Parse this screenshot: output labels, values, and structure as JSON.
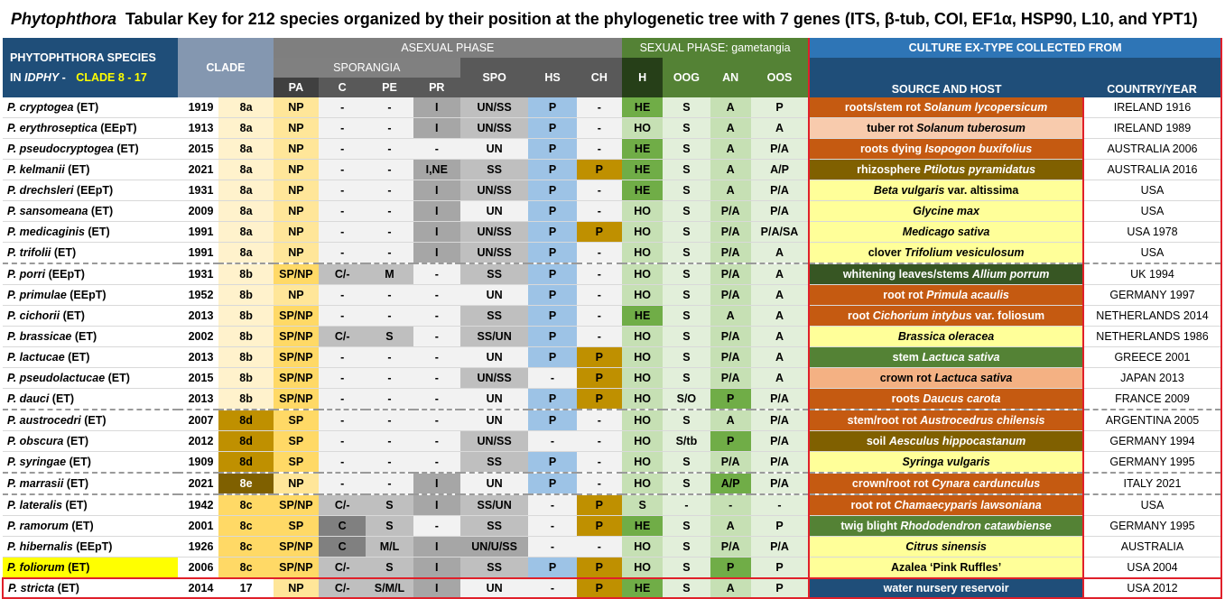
{
  "title": {
    "genus": "Phytophthora",
    "rest": "Tabular Key for 212 species organized by their position at the phylogenetic tree with 7 genes (ITS, β-tub, COI, EF1α, HSP90, L10, and YPT1)"
  },
  "headers": {
    "species_line1": "PHYTOPHTHORA  SPECIES",
    "species_line2a": "IN ",
    "species_line2b": "IDPHY",
    "species_line2c": " - ",
    "species_line2d": "CLADE 8 - 17",
    "clade": "CLADE",
    "asexual": "ASEXUAL PHASE",
    "sporangia": "SPORANGIA",
    "sexual": "SEXUAL PHASE: gametangia",
    "culture": "CULTURE EX-TYPE COLLECTED FROM",
    "pa": "PA",
    "c": "C",
    "pe": "PE",
    "pr": "PR",
    "spo": "SPO",
    "hs": "HS",
    "ch": "CH",
    "h": "H",
    "oog": "OOG",
    "an": "AN",
    "oos": "OOS",
    "source": "SOURCE AND HOST",
    "country": "COUNTRY/YEAR"
  },
  "colors": {
    "clade_light": "#fff2cc",
    "clade_dark": "#bf9000",
    "clade_e": "#7f6000",
    "pa_np": "#ffe699",
    "pa_sp": "#ffd966",
    "grey_light": "#f2f2f2",
    "grey_mid": "#bfbfbf",
    "grey_dark": "#a6a6a6",
    "grey_darker": "#808080",
    "hs_p": "#9dc3e6",
    "ch_p": "#bf9000",
    "h_he": "#70ad47",
    "sex_light": "#e2efda",
    "sex_mid": "#c6e0b4",
    "an_p": "#70ad47",
    "src_orange": "#c55a11",
    "src_lightorange": "#f8cbad",
    "src_salmon": "#f4b183",
    "src_olive": "#806000",
    "src_yellow": "#ffff99",
    "src_darkgreen": "#375623",
    "src_green": "#548235",
    "src_navy": "#1f4e79",
    "highlight": "#ffff00"
  },
  "rows": [
    {
      "name": "P. cryptogea",
      "tag": "(ET)",
      "year": "1919",
      "clade": "8a",
      "pa": "NP",
      "c": "-",
      "pe": "-",
      "pr": "I",
      "spo": "UN/SS",
      "hs": "P",
      "ch": "-",
      "h": "HE",
      "oog": "S",
      "an": "A",
      "oos": "P",
      "source_pre": "roots/stem rot ",
      "source_host": "Solanum lycopersicum",
      "source_post": "",
      "src_color": "orange",
      "country": "IRELAND 1916"
    },
    {
      "name": "P. erythroseptica",
      "tag": "(EEpT)",
      "year": "1913",
      "clade": "8a",
      "pa": "NP",
      "c": "-",
      "pe": "-",
      "pr": "I",
      "spo": "UN/SS",
      "hs": "P",
      "ch": "-",
      "h": "HO",
      "oog": "S",
      "an": "A",
      "oos": "A",
      "source_pre": "tuber rot ",
      "source_host": "Solanum tuberosum",
      "source_post": "",
      "src_color": "lightorange",
      "country": "IRELAND 1989"
    },
    {
      "name": "P. pseudocryptogea",
      "tag": "(ET)",
      "year": "2015",
      "clade": "8a",
      "pa": "NP",
      "c": "-",
      "pe": "-",
      "pr": "-",
      "spo": "UN",
      "hs": "P",
      "ch": "-",
      "h": "HE",
      "oog": "S",
      "an": "A",
      "oos": "P/A",
      "source_pre": "roots dying ",
      "source_host": "Isopogon buxifolius",
      "source_post": "",
      "src_color": "orange",
      "country": "AUSTRALIA 2006"
    },
    {
      "name": "P. kelmanii",
      "tag": "(ET)",
      "year": "2021",
      "clade": "8a",
      "pa": "NP",
      "c": "-",
      "pe": "-",
      "pr": "I,NE",
      "spo": "SS",
      "hs": "P",
      "ch": "P",
      "h": "HE",
      "oog": "S",
      "an": "A",
      "oos": "A/P",
      "source_pre": "rhizosphere ",
      "source_host": "Ptilotus pyramidatus",
      "source_post": "",
      "src_color": "olive",
      "country": "AUSTRALIA 2016"
    },
    {
      "name": "P. drechsleri",
      "tag": "(EEpT)",
      "year": "1931",
      "clade": "8a",
      "pa": "NP",
      "c": "-",
      "pe": "-",
      "pr": "I",
      "spo": "UN/SS",
      "hs": "P",
      "ch": "-",
      "h": "HE",
      "oog": "S",
      "an": "A",
      "oos": "P/A",
      "source_pre": "",
      "source_host": "Beta vulgaris",
      "source_post": "  var. altissima",
      "src_color": "yellow",
      "country": "USA"
    },
    {
      "name": "P. sansomeana",
      "tag": "(ET)",
      "year": "2009",
      "clade": "8a",
      "pa": "NP",
      "c": "-",
      "pe": "-",
      "pr": "I",
      "spo": "UN",
      "hs": "P",
      "ch": "-",
      "h": "HO",
      "oog": "S",
      "an": "P/A",
      "oos": "P/A",
      "source_pre": "",
      "source_host": "Glycine max",
      "source_post": "",
      "src_color": "yellow",
      "country": "USA"
    },
    {
      "name": "P. medicaginis",
      "tag": "(ET)",
      "year": "1991",
      "clade": "8a",
      "pa": "NP",
      "c": "-",
      "pe": "-",
      "pr": "I",
      "spo": "UN/SS",
      "hs": "P",
      "ch": "P",
      "h": "HO",
      "oog": "S",
      "an": "P/A",
      "oos": "P/A/SA",
      "source_pre": "",
      "source_host": "Medicago sativa",
      "source_post": "",
      "src_color": "yellow",
      "country": "USA 1978"
    },
    {
      "name": "P. trifolii",
      "tag": "(ET)",
      "year": "1991",
      "clade": "8a",
      "pa": "NP",
      "c": "-",
      "pe": "-",
      "pr": "I",
      "spo": "UN/SS",
      "hs": "P",
      "ch": "-",
      "h": "HO",
      "oog": "S",
      "an": "P/A",
      "oos": "A",
      "source_pre": "clover ",
      "source_host": "Trifolium vesiculosum",
      "source_post": "",
      "src_color": "yellow",
      "country": "USA",
      "sep": true
    },
    {
      "name": "P. porri",
      "tag": "(EEpT)",
      "year": "1931",
      "clade": "8b",
      "pa": "SP/NP",
      "c": "C/-",
      "pe": "M",
      "pr": "-",
      "spo": "SS",
      "hs": "P",
      "ch": "-",
      "h": "HO",
      "oog": "S",
      "an": "P/A",
      "oos": "A",
      "source_pre": "whitening leaves/stems ",
      "source_host": "Allium porrum",
      "source_post": "",
      "src_color": "darkgreen",
      "country": "UK 1994"
    },
    {
      "name": "P. primulae",
      "tag": "(EEpT)",
      "year": "1952",
      "clade": "8b",
      "pa": "NP",
      "c": "-",
      "pe": "-",
      "pr": "-",
      "spo": "UN",
      "hs": "P",
      "ch": "-",
      "h": "HO",
      "oog": "S",
      "an": "P/A",
      "oos": "A",
      "source_pre": "root rot ",
      "source_host": "Primula acaulis",
      "source_post": "",
      "src_color": "orange",
      "country": "GERMANY 1997"
    },
    {
      "name": "P. cichorii",
      "tag": "(ET)",
      "year": "2013",
      "clade": "8b",
      "pa": "SP/NP",
      "c": "-",
      "pe": "-",
      "pr": "-",
      "spo": "SS",
      "hs": "P",
      "ch": "-",
      "h": "HE",
      "oog": "S",
      "an": "A",
      "oos": "A",
      "source_pre": "root ",
      "source_host": "Cichorium intybus",
      "source_post": " var. foliosum",
      "src_color": "orange",
      "country": "NETHERLANDS 2014"
    },
    {
      "name": "P. brassicae",
      "tag": "(ET)",
      "year": "2002",
      "clade": "8b",
      "pa": "SP/NP",
      "c": "C/-",
      "pe": "S",
      "pr": "-",
      "spo": "SS/UN",
      "hs": "P",
      "ch": "-",
      "h": "HO",
      "oog": "S",
      "an": "P/A",
      "oos": "A",
      "source_pre": "",
      "source_host": "Brassica oleracea",
      "source_post": "",
      "src_color": "yellow",
      "country": "NETHERLANDS 1986"
    },
    {
      "name": "P. lactucae",
      "tag": "(ET)",
      "year": "2013",
      "clade": "8b",
      "pa": "SP/NP",
      "c": "-",
      "pe": "-",
      "pr": "-",
      "spo": "UN",
      "hs": "P",
      "ch": "P",
      "h": "HO",
      "oog": "S",
      "an": "P/A",
      "oos": "A",
      "source_pre": "stem ",
      "source_host": "Lactuca sativa",
      "source_post": "",
      "src_color": "green",
      "country": "GREECE 2001"
    },
    {
      "name": "P. pseudolactucae",
      "tag": "(ET)",
      "year": "2015",
      "clade": "8b",
      "pa": "SP/NP",
      "c": "-",
      "pe": "-",
      "pr": "-",
      "spo": "UN/SS",
      "hs": "-",
      "ch": "P",
      "h": "HO",
      "oog": "S",
      "an": "P/A",
      "oos": "A",
      "source_pre": "crown rot ",
      "source_host": "Lactuca sativa",
      "source_post": "",
      "src_color": "salmon",
      "country": "JAPAN 2013"
    },
    {
      "name": "P. dauci",
      "tag": "(ET)",
      "year": "2013",
      "clade": "8b",
      "pa": "SP/NP",
      "c": "-",
      "pe": "-",
      "pr": "-",
      "spo": "UN",
      "hs": "P",
      "ch": "P",
      "h": "HO",
      "oog": "S/O",
      "an": "P",
      "oos": "P/A",
      "source_pre": "roots ",
      "source_host": "Daucus carota",
      "source_post": "",
      "src_color": "orange",
      "country": "FRANCE 2009",
      "sep": true
    },
    {
      "name": "P. austrocedri",
      "tag": "(ET)",
      "year": "2007",
      "clade": "8d",
      "pa": "SP",
      "c": "-",
      "pe": "-",
      "pr": "-",
      "spo": "UN",
      "hs": "P",
      "ch": "-",
      "h": "HO",
      "oog": "S",
      "an": "A",
      "oos": "P/A",
      "source_pre": "stem/root rot ",
      "source_host": "Austrocedrus chilensis",
      "source_post": "",
      "src_color": "orange",
      "country": "ARGENTINA 2005"
    },
    {
      "name": "P. obscura",
      "tag": "(ET)",
      "year": "2012",
      "clade": "8d",
      "pa": "SP",
      "c": "-",
      "pe": "-",
      "pr": "-",
      "spo": "UN/SS",
      "hs": "-",
      "ch": "-",
      "h": "HO",
      "oog": "S/tb",
      "an": "P",
      "oos": "P/A",
      "source_pre": "soil ",
      "source_host": "Aesculus hippocastanum",
      "source_post": "",
      "src_color": "olive",
      "country": "GERMANY 1994"
    },
    {
      "name": "P. syringae",
      "tag": "(ET)",
      "year": "1909",
      "clade": "8d",
      "pa": "SP",
      "c": "-",
      "pe": "-",
      "pr": "-",
      "spo": "SS",
      "hs": "P",
      "ch": "-",
      "h": "HO",
      "oog": "S",
      "an": "P/A",
      "oos": "P/A",
      "source_pre": "",
      "source_host": "Syringa vulgaris",
      "source_post": "",
      "src_color": "yellow",
      "country": "GERMANY 1995",
      "sep": true
    },
    {
      "name": "P. marrasii",
      "tag": "(ET)",
      "year": "2021",
      "clade": "8e",
      "pa": "NP",
      "c": "-",
      "pe": "-",
      "pr": "I",
      "spo": "UN",
      "hs": "P",
      "ch": "-",
      "h": "HO",
      "oog": "S",
      "an": "A/P",
      "oos": "P/A",
      "source_pre": "crown/root rot ",
      "source_host": "Cynara cardunculus",
      "source_post": "",
      "src_color": "orange",
      "country": "ITALY 2021",
      "sep": true
    },
    {
      "name": "P. lateralis",
      "tag": "(ET)",
      "year": "1942",
      "clade": "8c",
      "pa": "SP/NP",
      "c": "C/-",
      "pe": "S",
      "pr": "I",
      "spo": "SS/UN",
      "hs": "-",
      "ch": "P",
      "h": "S",
      "oog": "-",
      "an": "-",
      "oos": "-",
      "source_pre": "root rot ",
      "source_host": "Chamaecyparis lawsoniana",
      "source_post": "",
      "src_color": "orange",
      "country": "USA"
    },
    {
      "name": "P. ramorum",
      "tag": "(ET)",
      "year": "2001",
      "clade": "8c",
      "pa": "SP",
      "c": "C",
      "pe": "S",
      "pr": "-",
      "spo": "SS",
      "hs": "-",
      "ch": "P",
      "h": "HE",
      "oog": "S",
      "an": "A",
      "oos": "P",
      "source_pre": "twig blight ",
      "source_host": "Rhododendron catawbiense",
      "source_post": "",
      "src_color": "green",
      "country": "GERMANY 1995"
    },
    {
      "name": "P. hibernalis",
      "tag": "(EEpT)",
      "year": "1926",
      "clade": "8c",
      "pa": "SP/NP",
      "c": "C",
      "pe": "M/L",
      "pr": "I",
      "spo": "UN/U/SS",
      "hs": "-",
      "ch": "-",
      "h": "HO",
      "oog": "S",
      "an": "P/A",
      "oos": "P/A",
      "source_pre": "",
      "source_host": "Citrus sinensis",
      "source_post": "",
      "src_color": "yellow",
      "country": "AUSTRALIA"
    },
    {
      "name": "P. foliorum",
      "tag": "(ET)",
      "year": "2006",
      "clade": "8c",
      "pa": "SP/NP",
      "c": "C/-",
      "pe": "S",
      "pr": "I",
      "spo": "SS",
      "hs": "P",
      "ch": "P",
      "h": "HO",
      "oog": "S",
      "an": "P",
      "oos": "P",
      "source_pre": "Azalea ‘Pink Ruffles’",
      "source_host": "",
      "source_post": "",
      "src_color": "yellow",
      "country": "USA 2004",
      "highlight": true
    },
    {
      "name": "P. stricta",
      "tag": "(ET)",
      "year": "2014",
      "clade": "17",
      "pa": "NP",
      "c": "C/-",
      "pe": "S/M/L",
      "pr": "I",
      "spo": "UN",
      "hs": "-",
      "ch": "P",
      "h": "HE",
      "oog": "S",
      "an": "A",
      "oos": "P",
      "source_pre": "water nursery reservoir",
      "source_host": "",
      "source_post": "",
      "src_color": "navy",
      "country": "USA 2012",
      "last": true
    }
  ]
}
